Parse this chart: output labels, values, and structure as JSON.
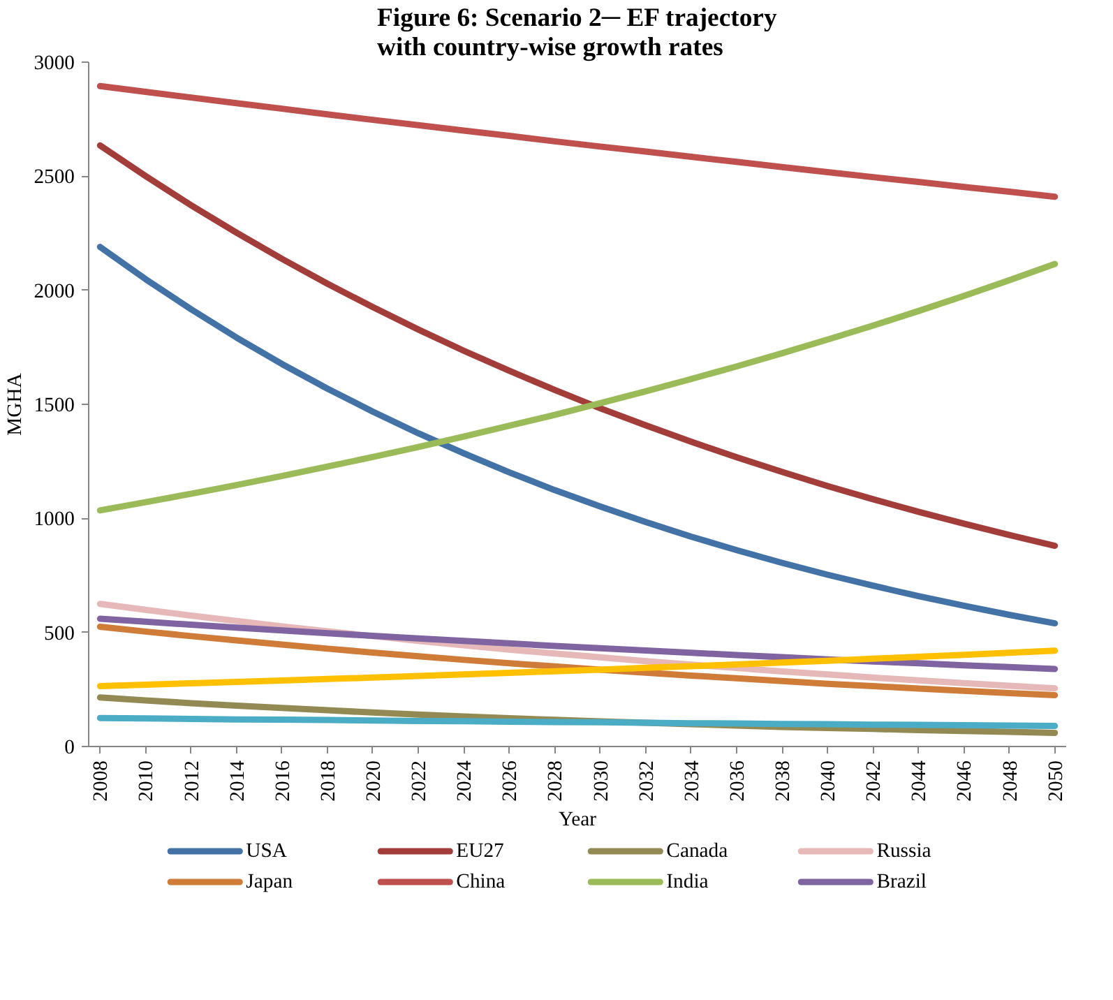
{
  "chart_data": {
    "type": "line",
    "title": "Figure 6: Scenario 2─ EF trajectory with country-wise growth rates",
    "xlabel": "Year",
    "ylabel": "MGHA",
    "categories": [
      "2008",
      "2010",
      "2012",
      "2014",
      "2016",
      "2018",
      "2020",
      "2022",
      "2024",
      "2026",
      "2028",
      "2030",
      "2032",
      "2034",
      "2036",
      "2038",
      "2040",
      "2042",
      "2044",
      "2046",
      "2048",
      "2050"
    ],
    "ylim": [
      0,
      3000
    ],
    "yticks": [
      0,
      500,
      1000,
      1500,
      2000,
      2500,
      3000
    ],
    "grid": false,
    "legend": "bottom",
    "marker": "none",
    "line_style": "solid",
    "series": [
      {
        "name": "USA",
        "color": "#4372a6",
        "values": [
          2190,
          2049,
          1917,
          1793,
          1677,
          1569,
          1468,
          1373,
          1285,
          1202,
          1124,
          1052,
          984,
          920,
          861,
          805,
          753,
          705,
          659,
          617,
          577,
          540
        ]
      },
      {
        "name": "EU27",
        "color": "#a33d3a",
        "values": [
          2635,
          2501,
          2373,
          2253,
          2138,
          2029,
          1926,
          1828,
          1735,
          1647,
          1563,
          1483,
          1408,
          1336,
          1268,
          1204,
          1142,
          1084,
          1029,
          977,
          927,
          880
        ]
      },
      {
        "name": "Canada",
        "color": "#938953",
        "values": [
          215,
          202,
          190,
          179,
          169,
          159,
          149,
          140,
          132,
          124,
          117,
          110,
          104,
          98,
          92,
          86,
          81,
          77,
          72,
          68,
          64,
          60
        ]
      },
      {
        "name": "Russia",
        "color": "#e6b9b8",
        "values": [
          625,
          599,
          574,
          550,
          527,
          505,
          484,
          463,
          444,
          425,
          408,
          391,
          374,
          359,
          344,
          329,
          316,
          302,
          290,
          278,
          266,
          255
        ]
      },
      {
        "name": "Japan",
        "color": "#d07c39",
        "values": [
          525,
          504,
          484,
          465,
          447,
          429,
          412,
          396,
          380,
          365,
          351,
          337,
          324,
          311,
          299,
          287,
          275,
          265,
          254,
          244,
          234,
          225
        ]
      },
      {
        "name": "China",
        "color": "#c0504d",
        "values": [
          2895,
          2870,
          2845,
          2820,
          2796,
          2771,
          2747,
          2724,
          2700,
          2677,
          2653,
          2630,
          2608,
          2585,
          2563,
          2540,
          2518,
          2496,
          2475,
          2453,
          2432,
          2410
        ]
      },
      {
        "name": "India",
        "color": "#9bbb59",
        "values": [
          1035,
          1071,
          1108,
          1146,
          1186,
          1227,
          1269,
          1313,
          1359,
          1406,
          1454,
          1505,
          1557,
          1611,
          1666,
          1724,
          1784,
          1845,
          1909,
          1975,
          2044,
          2115
        ]
      },
      {
        "name": "Brazil",
        "color": "#8064a2",
        "values": [
          560,
          547,
          534,
          521,
          509,
          497,
          485,
          474,
          463,
          452,
          441,
          431,
          421,
          411,
          401,
          392,
          382,
          373,
          365,
          356,
          348,
          340
        ]
      },
      {
        "color": "#ffc000",
        "values": [
          265,
          271,
          277,
          283,
          289,
          296,
          302,
          309,
          316,
          323,
          330,
          337,
          345,
          352,
          360,
          368,
          376,
          385,
          393,
          402,
          411,
          420
        ]
      },
      {
        "color": "#4bacc6",
        "values": [
          125,
          123,
          121,
          119,
          118,
          116,
          114,
          112,
          111,
          109,
          107,
          106,
          104,
          102,
          101,
          99,
          98,
          96,
          95,
          93,
          92,
          90
        ]
      }
    ]
  }
}
